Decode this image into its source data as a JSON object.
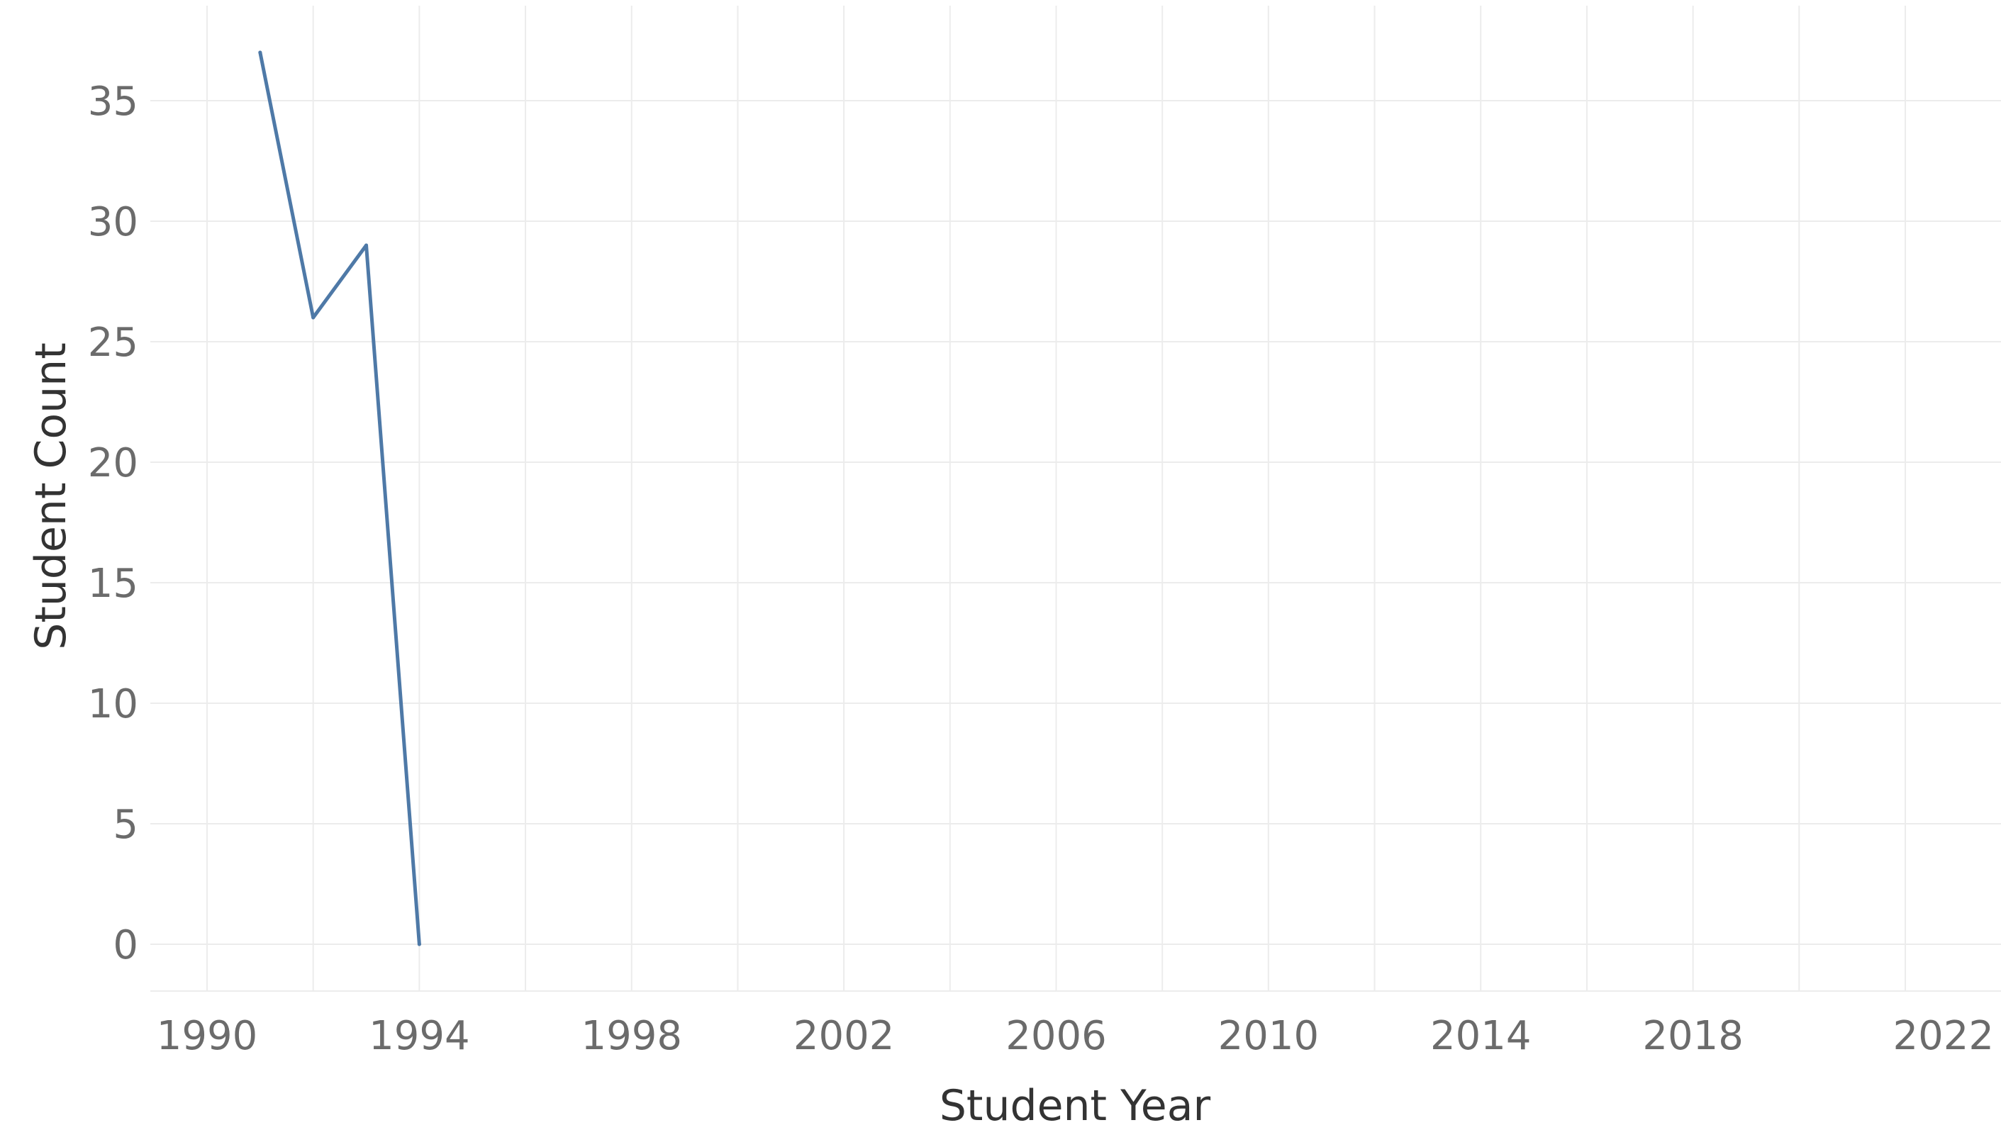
{
  "chart_data": {
    "type": "line",
    "title": "",
    "xlabel": "Student Year",
    "ylabel": "Student Count",
    "xlim": [
      1989,
      2023
    ],
    "ylim": [
      -2,
      38
    ],
    "x_ticks": [
      1990,
      1994,
      1998,
      2002,
      2006,
      2010,
      2014,
      2018,
      2022
    ],
    "x_minor_grid": [
      1990,
      1992,
      1994,
      1996,
      1998,
      2000,
      2002,
      2004,
      2006,
      2008,
      2010,
      2012,
      2014,
      2016,
      2018,
      2020,
      2022
    ],
    "y_ticks": [
      0,
      5,
      10,
      15,
      20,
      25,
      30,
      35
    ],
    "grid": true,
    "legend": "none",
    "series": [
      {
        "color": "#4e79a7",
        "points": [
          {
            "x": 1991,
            "y": 37
          },
          {
            "x": 1992,
            "y": 26
          },
          {
            "x": 1993,
            "y": 29
          },
          {
            "x": 1994,
            "y": 0
          }
        ]
      }
    ]
  }
}
